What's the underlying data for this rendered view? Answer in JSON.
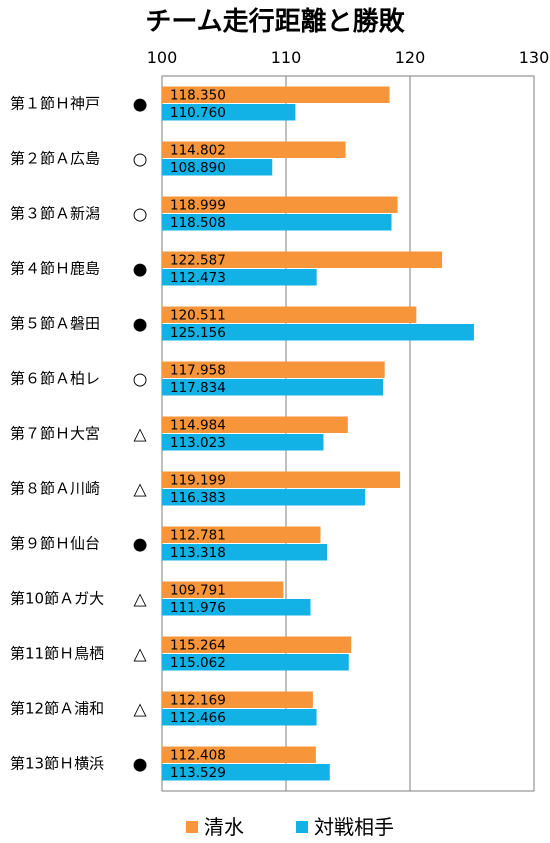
{
  "chart_data": {
    "type": "bar",
    "orientation": "horizontal",
    "title": "チーム走行距離と勝敗",
    "xlim": [
      100,
      130
    ],
    "xticks": [
      "100",
      "110",
      "120",
      "130"
    ],
    "grid": "vertical",
    "legend_position": "bottom",
    "categories": [
      "第１節Ｈ神戸",
      "第２節Ａ広島",
      "第３節Ａ新潟",
      "第４節Ｈ鹿島",
      "第５節Ａ磐田",
      "第６節Ａ柏レ",
      "第７節Ｈ大宮",
      "第８節Ａ川崎",
      "第９節Ｈ仙台",
      "第10節Ａガ大",
      "第11節Ｈ鳥栖",
      "第12節Ａ浦和",
      "第13節Ｈ横浜"
    ],
    "results": [
      "●",
      "○",
      "○",
      "●",
      "●",
      "○",
      "△",
      "△",
      "●",
      "△",
      "△",
      "△",
      "●"
    ],
    "series": [
      {
        "name": "清水",
        "color": "#f7953b",
        "values": [
          118.35,
          114.802,
          118.999,
          122.587,
          120.511,
          117.958,
          114.984,
          119.199,
          112.781,
          109.791,
          115.264,
          112.169,
          112.408
        ],
        "labels": [
          "118.350",
          "114.802",
          "118.999",
          "122.587",
          "120.511",
          "117.958",
          "114.984",
          "119.199",
          "112.781",
          "109.791",
          "115.264",
          "112.169",
          "112.408"
        ]
      },
      {
        "name": "対戦相手",
        "color": "#12b2e6",
        "values": [
          110.76,
          108.89,
          118.508,
          112.473,
          125.156,
          117.834,
          113.023,
          116.383,
          113.318,
          111.976,
          115.062,
          112.466,
          113.529
        ],
        "labels": [
          "110.760",
          "108.890",
          "118.508",
          "112.473",
          "125.156",
          "117.834",
          "113.023",
          "116.383",
          "113.318",
          "111.976",
          "115.062",
          "112.466",
          "113.529"
        ]
      }
    ]
  }
}
